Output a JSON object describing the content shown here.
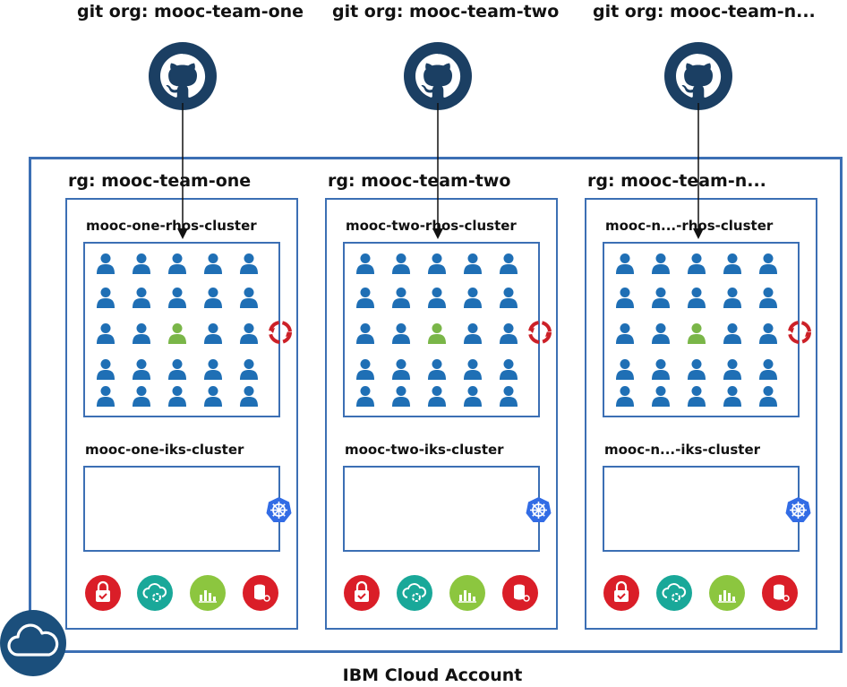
{
  "account_label": "IBM Cloud Account",
  "teams": [
    {
      "git_org": "git org: mooc-team-one",
      "rg": "rg: mooc-team-one",
      "rhos_cluster": "mooc-one-rhos-cluster",
      "iks_cluster": "mooc-one-iks-cluster"
    },
    {
      "git_org": "git org: mooc-team-two",
      "rg": "rg: mooc-team-two",
      "rhos_cluster": "mooc-two-rhos-cluster",
      "iks_cluster": "mooc-two-iks-cluster"
    },
    {
      "git_org": "git org: mooc-team-n...",
      "rg": "rg: mooc-team-n...",
      "rhos_cluster": "mooc-n...-rhos-cluster",
      "iks_cluster": "mooc-n...-iks-cluster"
    }
  ],
  "users_grid": {
    "rows": 5,
    "cols": 5,
    "highlighted": [
      2,
      2
    ]
  },
  "icons": {
    "git": "github-icon",
    "rhos": "openshift-icon",
    "iks": "kubernetes-icon",
    "services": [
      "security-service-icon",
      "cloud-function-icon",
      "monitoring-icon",
      "database-icon"
    ],
    "account": "cloud-icon"
  },
  "colors": {
    "border": "#3c6fb4",
    "user": "#1f6fb5",
    "user_highlight": "#7ab648",
    "openshift": "#cc2027",
    "kubernetes": "#326ce5",
    "svc_red": "#da1e28",
    "svc_teal": "#19a899",
    "svc_green": "#8cc63f",
    "github_bg": "#1b3f63",
    "cloud_bg": "#1b4f7c"
  }
}
